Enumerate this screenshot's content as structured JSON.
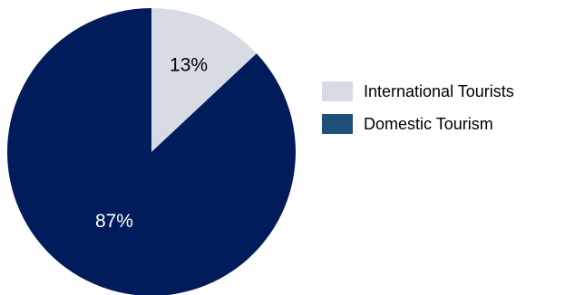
{
  "chart_data": {
    "type": "pie",
    "title": "",
    "slices": [
      {
        "name": "International Tourists",
        "value": 13,
        "label": "13%",
        "color": "#d6dbe4"
      },
      {
        "name": "Domestic Tourism",
        "value": 87,
        "label": "87%",
        "color": "#001c5b"
      }
    ],
    "legend": {
      "position": "right",
      "items": [
        {
          "label": "International Tourists",
          "color": "#d6dbe4"
        },
        {
          "label": "Domestic Tourism",
          "color": "#1f4e79"
        }
      ]
    }
  }
}
